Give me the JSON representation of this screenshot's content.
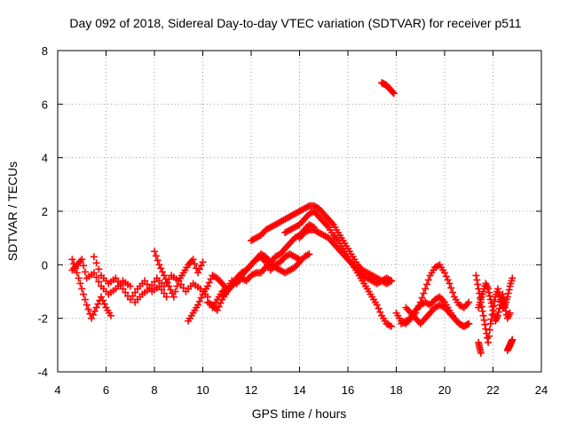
{
  "chart_data": {
    "type": "scatter",
    "title": "Day 092 of 2018, Sidereal Day-to-day VTEC variation (SDTVAR) for receiver p511",
    "xlabel": "GPS time / hours",
    "ylabel": "SDTVAR / TECUs",
    "xlim": [
      4,
      24
    ],
    "ylim": [
      -4,
      8
    ],
    "xticks": [
      "4",
      "6",
      "8",
      "10",
      "12",
      "14",
      "16",
      "18",
      "20",
      "22",
      "24"
    ],
    "yticks": [
      "-4",
      "-2",
      "0",
      "2",
      "4",
      "6",
      "8"
    ],
    "grid": true,
    "marker": "+",
    "color": "#ff0000",
    "series": [
      {
        "name": "arc-morning-1",
        "x": [
          4.6,
          4.8,
          5.0,
          5.2,
          5.4,
          5.6,
          5.8,
          6.0,
          6.2
        ],
        "y": [
          0.2,
          -0.3,
          -0.9,
          -1.5,
          -2.0,
          -1.6,
          -1.2,
          -1.6,
          -1.9
        ]
      },
      {
        "name": "arc-morning-2",
        "x": [
          4.6,
          4.8,
          5.0,
          5.2,
          5.5,
          5.8,
          6.1,
          6.4,
          6.7,
          7.0
        ],
        "y": [
          -0.2,
          0.0,
          0.2,
          -0.5,
          -0.3,
          -0.8,
          -1.1,
          -0.9,
          -0.6,
          -0.8
        ]
      },
      {
        "name": "arc-morning-3",
        "x": [
          5.5,
          5.8,
          6.1,
          6.4,
          6.7,
          7.0,
          7.3,
          7.6,
          7.9,
          8.2,
          8.5
        ],
        "y": [
          0.3,
          -0.4,
          -0.7,
          -0.5,
          -0.9,
          -1.3,
          -0.9,
          -0.6,
          -1.0,
          -0.8,
          -1.2
        ]
      },
      {
        "name": "arc-morning-4",
        "x": [
          7.2,
          7.5,
          7.8,
          8.1,
          8.4,
          8.7,
          9.0,
          9.3,
          9.6,
          9.9,
          10.2
        ],
        "y": [
          -1.4,
          -1.1,
          -0.9,
          -0.5,
          -0.8,
          -0.4,
          -0.6,
          -1.0,
          -0.7,
          -0.9,
          -1.2
        ]
      },
      {
        "name": "arc-morning-5",
        "x": [
          8.0,
          8.2,
          8.4,
          8.6,
          8.8,
          9.0,
          9.2,
          9.4,
          9.6,
          9.8,
          10.0
        ],
        "y": [
          0.5,
          0.0,
          -0.4,
          -0.8,
          -1.2,
          -0.6,
          -0.3,
          0.0,
          0.2,
          -0.3,
          0.1
        ]
      },
      {
        "name": "arc-morning-6",
        "x": [
          9.4,
          9.6,
          9.8,
          10.0,
          10.2,
          10.4,
          10.6,
          10.8,
          11.0
        ],
        "y": [
          -2.1,
          -1.8,
          -1.5,
          -1.1,
          -0.8,
          -0.4,
          -0.5,
          -0.7,
          -0.9
        ]
      },
      {
        "name": "arc-midday-1",
        "x": [
          10.2,
          10.4,
          10.6,
          10.8,
          11.0,
          11.2,
          11.4,
          11.6,
          11.8,
          12.0,
          12.2,
          12.4,
          12.6,
          12.8,
          13.0,
          13.2,
          13.4,
          13.6,
          13.8,
          14.0
        ],
        "y": [
          -1.4,
          -1.5,
          -1.7,
          -1.3,
          -1.0,
          -0.7,
          -0.5,
          -0.3,
          -0.2,
          0.0,
          0.2,
          0.3,
          0.1,
          -0.2,
          0.0,
          0.1,
          0.3,
          0.4,
          0.3,
          0.2
        ]
      },
      {
        "name": "arc-midday-2",
        "x": [
          10.4,
          10.6,
          10.8,
          11.0,
          11.2,
          11.4,
          11.6,
          11.8,
          12.0,
          12.2,
          12.4,
          12.6,
          12.8,
          13.0,
          13.2,
          13.4,
          13.6,
          13.8,
          14.0,
          14.2,
          14.4,
          14.6
        ],
        "y": [
          -1.6,
          -1.3,
          -1.0,
          -0.9,
          -0.6,
          -0.7,
          -0.5,
          -0.6,
          -0.4,
          -0.3,
          -0.3,
          -0.1,
          0.1,
          0.3,
          0.4,
          0.6,
          0.8,
          1.0,
          1.1,
          1.3,
          1.5,
          1.4
        ]
      },
      {
        "name": "arc-midday-3",
        "x": [
          10.8,
          11.0,
          11.2,
          11.4,
          11.6,
          11.8,
          12.0,
          12.2,
          12.4,
          12.6,
          12.8,
          13.0,
          13.2,
          13.4,
          13.6,
          13.8,
          14.0,
          14.2,
          14.4
        ],
        "y": [
          -1.2,
          -1.0,
          -0.8,
          -0.6,
          -0.4,
          -0.2,
          0.0,
          0.2,
          0.4,
          0.3,
          0.1,
          -0.1,
          -0.2,
          -0.3,
          -0.2,
          -0.1,
          0.1,
          0.3,
          0.4
        ]
      },
      {
        "name": "arc-peak-1",
        "x": [
          12.0,
          12.2,
          12.4,
          12.6,
          12.8,
          13.0,
          13.2,
          13.4,
          13.6,
          13.8,
          14.0,
          14.2,
          14.4,
          14.6,
          14.8,
          15.0,
          15.2,
          15.4,
          15.6,
          15.8,
          16.0,
          16.2,
          16.4,
          16.6,
          16.8,
          17.0,
          17.2,
          17.4,
          17.6,
          17.8
        ],
        "y": [
          0.9,
          1.0,
          1.1,
          1.3,
          1.4,
          1.5,
          1.6,
          1.7,
          1.8,
          1.9,
          2.0,
          2.1,
          2.2,
          2.2,
          2.1,
          1.9,
          1.7,
          1.5,
          1.2,
          0.9,
          0.6,
          0.3,
          0.0,
          -0.2,
          -0.3,
          -0.4,
          -0.5,
          -0.6,
          -0.5,
          -0.6
        ]
      },
      {
        "name": "arc-peak-2",
        "x": [
          13.4,
          13.6,
          13.8,
          14.0,
          14.2,
          14.4,
          14.6,
          14.8,
          15.0,
          15.2,
          15.4,
          15.6,
          15.8,
          16.0,
          16.2,
          16.4,
          16.6,
          16.8,
          17.0,
          17.2,
          17.4,
          17.6,
          17.8
        ],
        "y": [
          1.2,
          1.3,
          1.4,
          1.5,
          1.7,
          1.9,
          2.0,
          1.8,
          1.6,
          1.4,
          1.1,
          0.9,
          0.6,
          0.3,
          0.0,
          -0.3,
          -0.6,
          -0.9,
          -1.2,
          -1.5,
          -1.9,
          -2.2,
          -2.3
        ]
      },
      {
        "name": "arc-peak-3",
        "x": [
          14.0,
          14.2,
          14.4,
          14.6,
          14.8,
          15.0,
          15.2,
          15.4,
          15.6,
          15.8,
          16.0,
          16.2,
          16.4,
          16.6,
          16.8,
          17.0,
          17.2,
          17.4,
          17.6,
          17.8
        ],
        "y": [
          1.0,
          1.2,
          1.3,
          1.3,
          1.2,
          1.1,
          1.0,
          0.8,
          0.6,
          0.4,
          0.2,
          0.0,
          -0.2,
          -0.4,
          -0.5,
          -0.6,
          -0.7,
          -0.6,
          -0.7,
          -0.6
        ]
      },
      {
        "name": "arc-outlier",
        "x": [
          17.4,
          17.5,
          17.6,
          17.7,
          17.8,
          17.9
        ],
        "y": [
          6.8,
          6.75,
          6.7,
          6.6,
          6.5,
          6.4
        ]
      },
      {
        "name": "arc-evening-1",
        "x": [
          18.0,
          18.2,
          18.4,
          18.6,
          18.8,
          19.0,
          19.2,
          19.4,
          19.6,
          19.8,
          20.0,
          20.2,
          20.4,
          20.6,
          20.8,
          21.0
        ],
        "y": [
          -1.8,
          -2.1,
          -2.2,
          -2.0,
          -1.8,
          -1.4,
          -0.9,
          -0.4,
          -0.1,
          0.0,
          -0.3,
          -0.7,
          -1.2,
          -1.5,
          -1.6,
          -1.4
        ]
      },
      {
        "name": "arc-evening-2",
        "x": [
          18.2,
          18.4,
          18.6,
          18.8,
          19.0,
          19.2,
          19.4,
          19.6,
          19.8,
          20.0,
          20.2,
          20.4,
          20.6,
          20.8,
          21.0
        ],
        "y": [
          -2.2,
          -2.1,
          -2.0,
          -1.7,
          -1.5,
          -1.4,
          -1.5,
          -1.3,
          -1.2,
          -1.4,
          -1.7,
          -2.0,
          -2.2,
          -2.3,
          -2.2
        ]
      },
      {
        "name": "arc-evening-3",
        "x": [
          18.4,
          18.6,
          18.8,
          19.0,
          19.2,
          19.4,
          19.6,
          19.8,
          20.0,
          20.2,
          20.4,
          20.6,
          20.8,
          21.0
        ],
        "y": [
          -1.6,
          -1.8,
          -2.0,
          -2.2,
          -2.0,
          -1.8,
          -1.6,
          -1.5,
          -1.6,
          -1.8,
          -2.0,
          -2.2,
          -2.3,
          -2.2
        ]
      },
      {
        "name": "arc-late-1",
        "x": [
          21.3,
          21.4,
          21.5,
          21.6,
          21.7,
          21.8,
          21.9,
          22.0,
          22.1,
          22.2,
          22.3,
          22.4,
          22.5,
          22.6,
          22.7,
          22.8
        ],
        "y": [
          -0.4,
          -0.9,
          -1.4,
          -1.9,
          -2.4,
          -2.9,
          -2.2,
          -1.7,
          -1.2,
          -0.9,
          -1.3,
          -1.6,
          -1.5,
          -1.2,
          -0.8,
          -0.5
        ]
      },
      {
        "name": "arc-late-2",
        "x": [
          21.4,
          21.5,
          21.6,
          21.7,
          21.8,
          21.9,
          22.0,
          22.1,
          22.2,
          22.3,
          22.4,
          22.5,
          22.6,
          22.7
        ],
        "y": [
          -1.6,
          -1.3,
          -1.0,
          -0.7,
          -0.9,
          -1.3,
          -1.7,
          -2.1,
          -1.9,
          -1.5,
          -1.1,
          -1.6,
          -2.0,
          -1.8
        ]
      },
      {
        "name": "arc-late-3",
        "x": [
          21.4,
          21.45,
          21.5
        ],
        "y": [
          -2.9,
          -3.1,
          -3.3
        ]
      },
      {
        "name": "arc-late-4",
        "x": [
          22.6,
          22.65,
          22.7,
          22.75,
          22.8
        ],
        "y": [
          -3.2,
          -3.1,
          -3.0,
          -2.9,
          -2.8
        ]
      }
    ]
  }
}
